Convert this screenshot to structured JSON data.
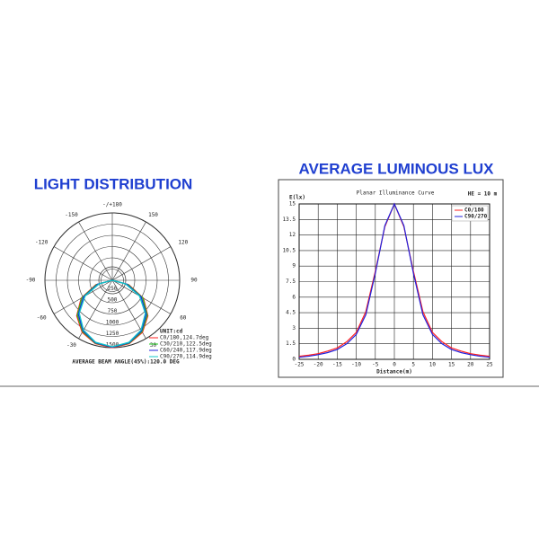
{
  "chart_data": [
    {
      "type": "polar",
      "title": "LIGHT DISTRIBUTION",
      "caption": "AVERAGE BEAM ANGLE(45%):120.0 DEG",
      "legend_title": "UNIT:cd",
      "angles": [
        -90,
        -75,
        -60,
        -45,
        -30,
        -15,
        0,
        15,
        30,
        45,
        60,
        75,
        90
      ],
      "angle_ticks": [
        {
          "value": 180,
          "label": "-/+180"
        },
        -150,
        150,
        -120,
        120,
        -90,
        90,
        -60,
        60,
        -30,
        30
      ],
      "rlim": [
        0,
        1500
      ],
      "rticks": [
        250,
        500,
        750,
        1000,
        1250,
        1500
      ],
      "series": [
        {
          "name": "C0/180,124.7deg",
          "color": "#ff2020",
          "values": [
            0,
            380,
            800,
            1120,
            1340,
            1460,
            1500,
            1460,
            1340,
            1120,
            800,
            380,
            0
          ]
        },
        {
          "name": "C30/210,122.5deg",
          "color": "#22cc22",
          "values": [
            0,
            360,
            780,
            1100,
            1320,
            1450,
            1490,
            1450,
            1320,
            1100,
            780,
            360,
            0
          ]
        },
        {
          "name": "C60/240,117.9deg",
          "color": "#2222dd",
          "values": [
            0,
            330,
            740,
            1070,
            1300,
            1440,
            1490,
            1440,
            1300,
            1070,
            740,
            330,
            0
          ]
        },
        {
          "name": "C90/270,114.9deg",
          "color": "#10c8c8",
          "values": [
            0,
            300,
            700,
            1040,
            1280,
            1430,
            1480,
            1430,
            1280,
            1040,
            700,
            300,
            0
          ]
        }
      ]
    },
    {
      "type": "line",
      "title": "AVERAGE LUMINOUS LUX",
      "subtitle": "Planar Illuminance Curve",
      "annotation": "HE = 10 m",
      "ylabel": "E(lx)",
      "xlabel": "Distance(m)",
      "x": [
        -25,
        -22.5,
        -20,
        -17.5,
        -15,
        -12.5,
        -10,
        -7.5,
        -5,
        -2.5,
        0,
        2.5,
        5,
        7.5,
        10,
        12.5,
        15,
        17.5,
        20,
        22.5,
        25
      ],
      "xlim": [
        -25,
        25
      ],
      "xticks": [
        -25,
        -20,
        -15,
        -10,
        -5,
        0,
        5,
        10,
        15,
        20,
        25
      ],
      "ylim": [
        0,
        15
      ],
      "yticks": [
        0,
        1.5,
        3,
        4.5,
        6,
        7.5,
        9,
        10.5,
        12,
        13.5,
        15
      ],
      "grid": true,
      "series": [
        {
          "name": "C0/180",
          "color": "#ff2020",
          "values": [
            0.3,
            0.4,
            0.55,
            0.8,
            1.1,
            1.7,
            2.6,
            4.6,
            8.5,
            12.8,
            15,
            12.8,
            8.5,
            4.6,
            2.6,
            1.7,
            1.1,
            0.8,
            0.55,
            0.4,
            0.3
          ]
        },
        {
          "name": "C90/270",
          "color": "#2222dd",
          "values": [
            0.2,
            0.3,
            0.45,
            0.65,
            0.95,
            1.5,
            2.4,
            4.3,
            8.3,
            12.9,
            15,
            12.9,
            8.3,
            4.3,
            2.4,
            1.5,
            0.95,
            0.65,
            0.45,
            0.3,
            0.2
          ]
        }
      ]
    }
  ]
}
